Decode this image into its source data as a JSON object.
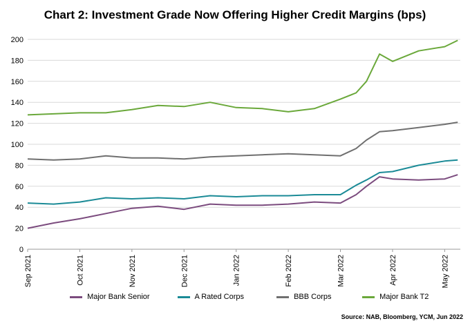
{
  "chart_data": {
    "type": "line",
    "title": "Chart 2: Investment Grade Now Offering Higher Credit Margins (bps)",
    "source": "Source: NAB, Bloomberg, YCM, Jun 2022",
    "ylim": [
      0,
      200
    ],
    "yticks": [
      0,
      20,
      40,
      60,
      80,
      100,
      120,
      140,
      160,
      180,
      200
    ],
    "xlabels": [
      "Sep 2021",
      "Oct 2021",
      "Nov 2021",
      "Dec 2021",
      "Jan 2022",
      "Feb 2022",
      "Mar 2022",
      "Apr 2022",
      "May 2022"
    ],
    "x": [
      0,
      0.5,
      1,
      1.5,
      2,
      2.5,
      3,
      3.5,
      4,
      4.5,
      5,
      5.5,
      6,
      6.3,
      6.5,
      6.75,
      7,
      7.5,
      8,
      8.25
    ],
    "series": [
      {
        "name": "Major Bank Senior",
        "color": "#7b4b7e",
        "values": [
          20,
          25,
          29,
          34,
          39,
          41,
          38,
          43,
          42,
          42,
          43,
          45,
          44,
          52,
          60,
          69,
          67,
          66,
          67,
          71
        ]
      },
      {
        "name": "A Rated Corps",
        "color": "#1a8a96",
        "values": [
          44,
          43,
          45,
          49,
          48,
          49,
          48,
          51,
          50,
          51,
          51,
          52,
          52,
          61,
          66,
          73,
          74,
          80,
          84,
          85
        ]
      },
      {
        "name": "BBB Corps",
        "color": "#6f6f6f",
        "values": [
          86,
          85,
          86,
          89,
          87,
          87,
          86,
          88,
          89,
          90,
          91,
          90,
          89,
          96,
          104,
          112,
          113,
          116,
          119,
          121
        ]
      },
      {
        "name": "Major Bank T2",
        "color": "#6aa83a",
        "values": [
          128,
          129,
          130,
          130,
          133,
          137,
          136,
          140,
          135,
          134,
          131,
          134,
          143,
          149,
          160,
          186,
          179,
          189,
          193,
          199
        ]
      }
    ]
  }
}
